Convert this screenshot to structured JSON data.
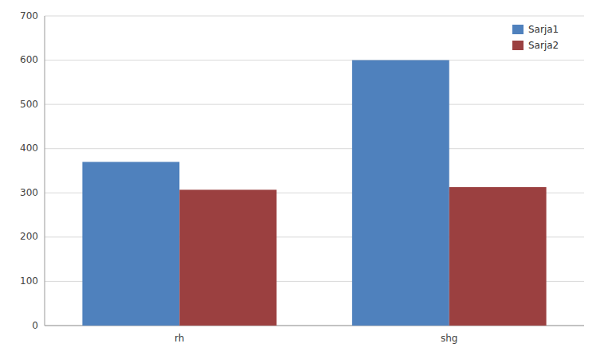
{
  "chart_data": {
    "type": "bar",
    "categories": [
      "rh",
      "shg"
    ],
    "series": [
      {
        "name": "Sarja1",
        "values": [
          370,
          600
        ],
        "color": "#4F81BD"
      },
      {
        "name": "Sarja2",
        "values": [
          307,
          313
        ],
        "color": "#9B4040"
      }
    ],
    "ylim": [
      0,
      700
    ],
    "yticks": [
      0,
      100,
      200,
      300,
      400,
      500,
      600,
      700
    ],
    "grid": true,
    "legend": "upper right"
  }
}
